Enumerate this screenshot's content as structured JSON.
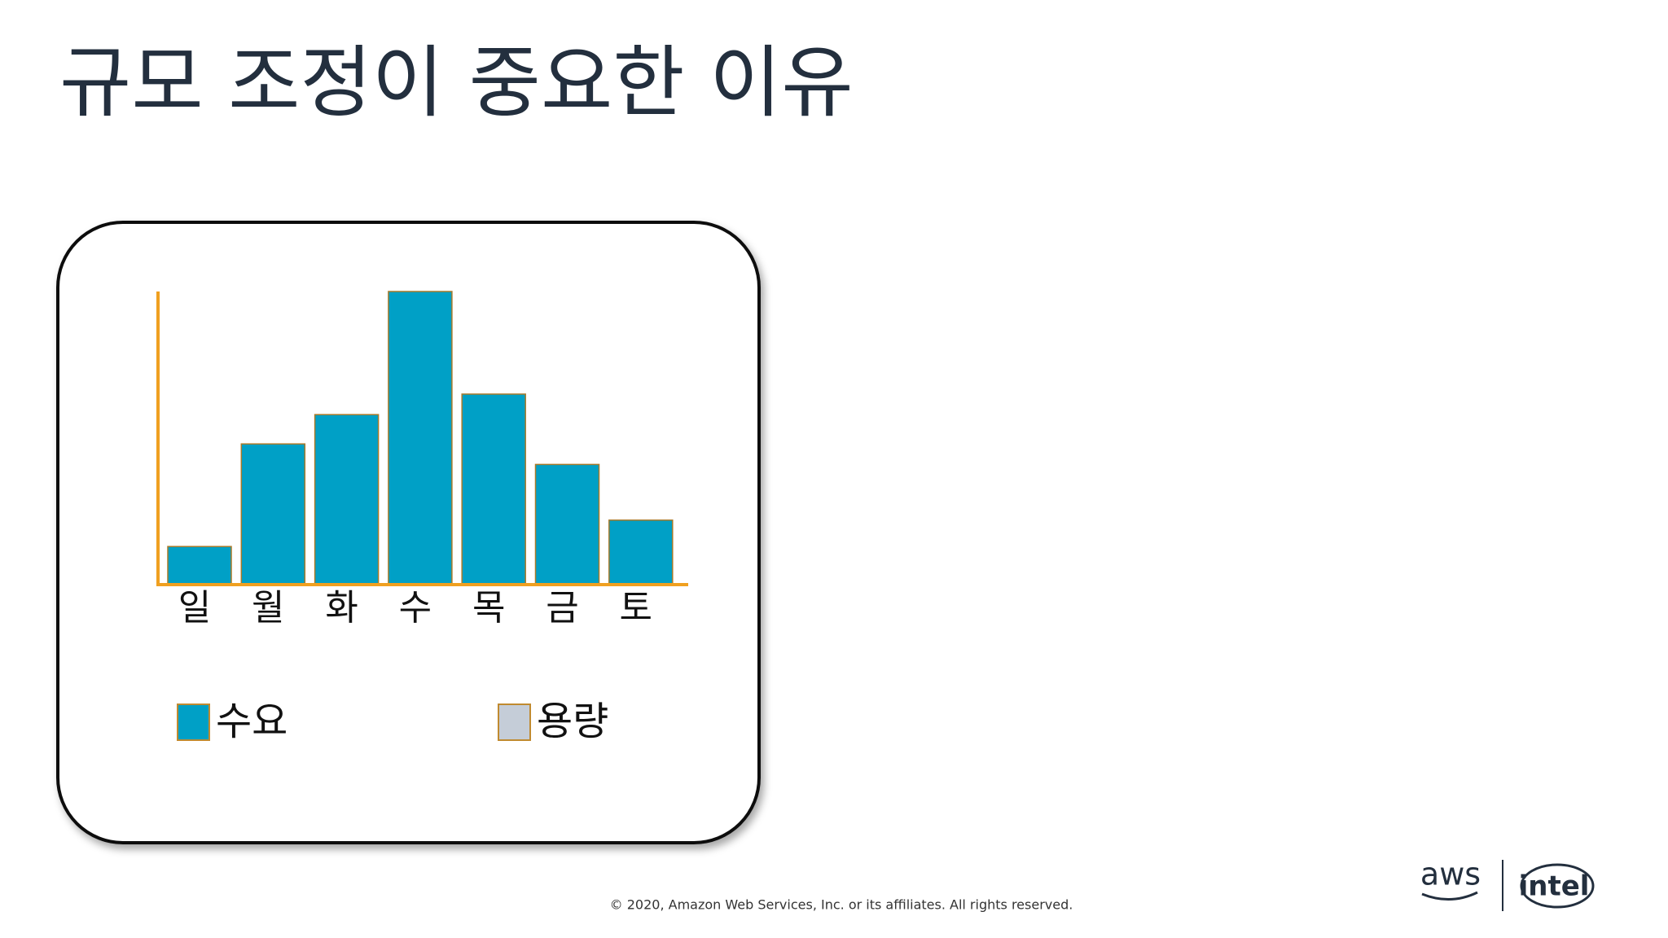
{
  "chart_data": {
    "type": "bar",
    "title": "규모 조정이 중요한 이유",
    "categories": [
      "일",
      "월",
      "화",
      "수",
      "목",
      "금",
      "토"
    ],
    "series": [
      {
        "name": "수요",
        "color": "#00a0c6",
        "values": [
          13,
          48,
          58,
          100,
          65,
          41,
          22
        ]
      },
      {
        "name": "용량",
        "color": "#c5cdd8",
        "values": [
          null,
          null,
          null,
          null,
          null,
          null,
          null
        ]
      }
    ],
    "ylim": [
      0,
      100
    ],
    "grid": false,
    "legend": "bottom"
  },
  "footer": {
    "copyright": "© 2020, Amazon Web Services, Inc. or its affiliates. All rights reserved.",
    "logos": [
      "aws",
      "intel"
    ]
  }
}
